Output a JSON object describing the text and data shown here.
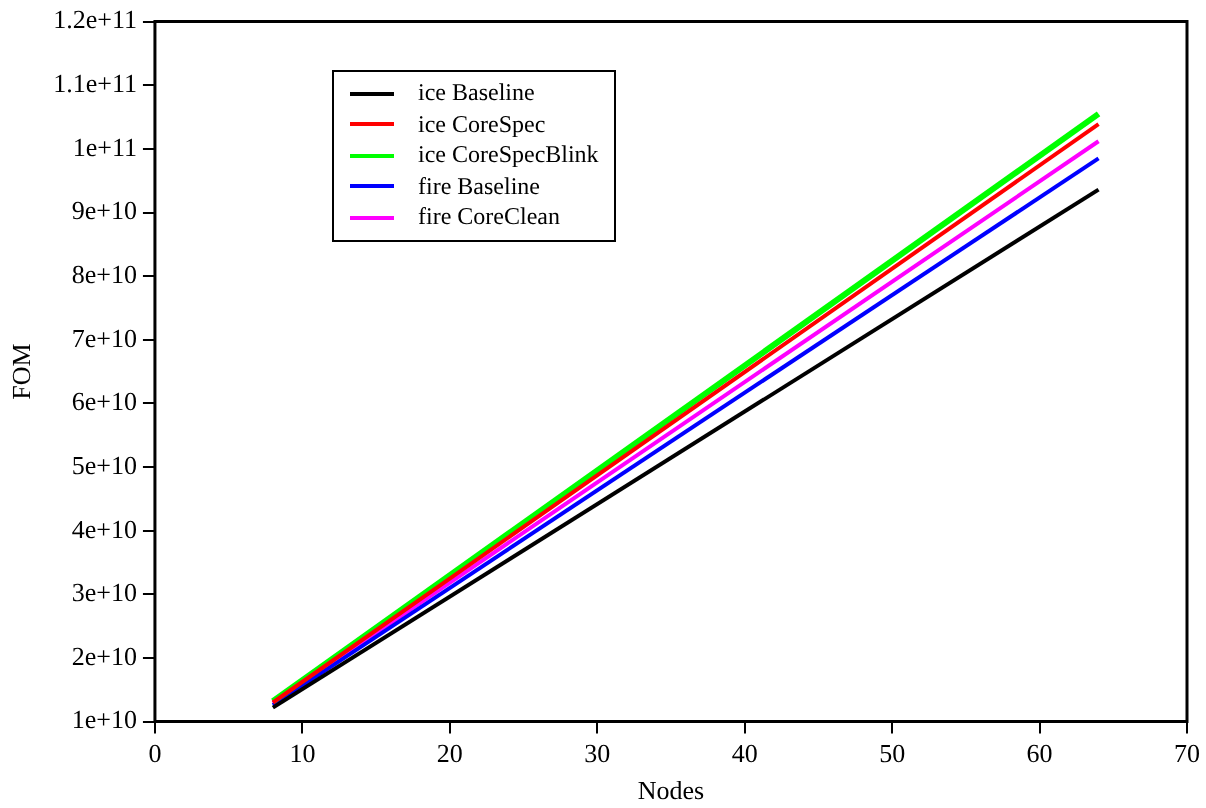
{
  "chart_data": {
    "type": "line",
    "xlabel": "Nodes",
    "ylabel": "FOM",
    "x": [
      8,
      64
    ],
    "series": [
      {
        "name": "ice Baseline",
        "color": "#000000",
        "values": [
          12200000000,
          93600000000
        ]
      },
      {
        "name": "ice CoreSpec",
        "color": "#ff0000",
        "values": [
          13000000000,
          103900000000
        ]
      },
      {
        "name": "ice CoreSpecBlink",
        "color": "#00ff00",
        "values": [
          13200000000,
          105500000000
        ]
      },
      {
        "name": "fire Baseline",
        "color": "#0000ff",
        "values": [
          12600000000,
          98500000000
        ]
      },
      {
        "name": "fire CoreClean",
        "color": "#ff00ff",
        "values": [
          12900000000,
          101200000000
        ]
      }
    ],
    "xlim": [
      0,
      70
    ],
    "xticks": [
      0,
      10,
      20,
      30,
      40,
      50,
      60,
      70
    ],
    "ylim": [
      10000000000,
      120000000000
    ],
    "yticks": [
      {
        "value": 10000000000,
        "label": "1e+10"
      },
      {
        "value": 20000000000,
        "label": "2e+10"
      },
      {
        "value": 30000000000,
        "label": "3e+10"
      },
      {
        "value": 40000000000,
        "label": "4e+10"
      },
      {
        "value": 50000000000,
        "label": "5e+10"
      },
      {
        "value": 60000000000,
        "label": "6e+10"
      },
      {
        "value": 70000000000,
        "label": "7e+10"
      },
      {
        "value": 80000000000,
        "label": "8e+10"
      },
      {
        "value": 90000000000,
        "label": "9e+10"
      },
      {
        "value": 100000000000,
        "label": "1e+11"
      },
      {
        "value": 110000000000,
        "label": "1.1e+11"
      },
      {
        "value": 120000000000,
        "label": "1.2e+11"
      }
    ],
    "grid": false,
    "legend": "top left",
    "marker": "none",
    "line_style": "solid"
  }
}
